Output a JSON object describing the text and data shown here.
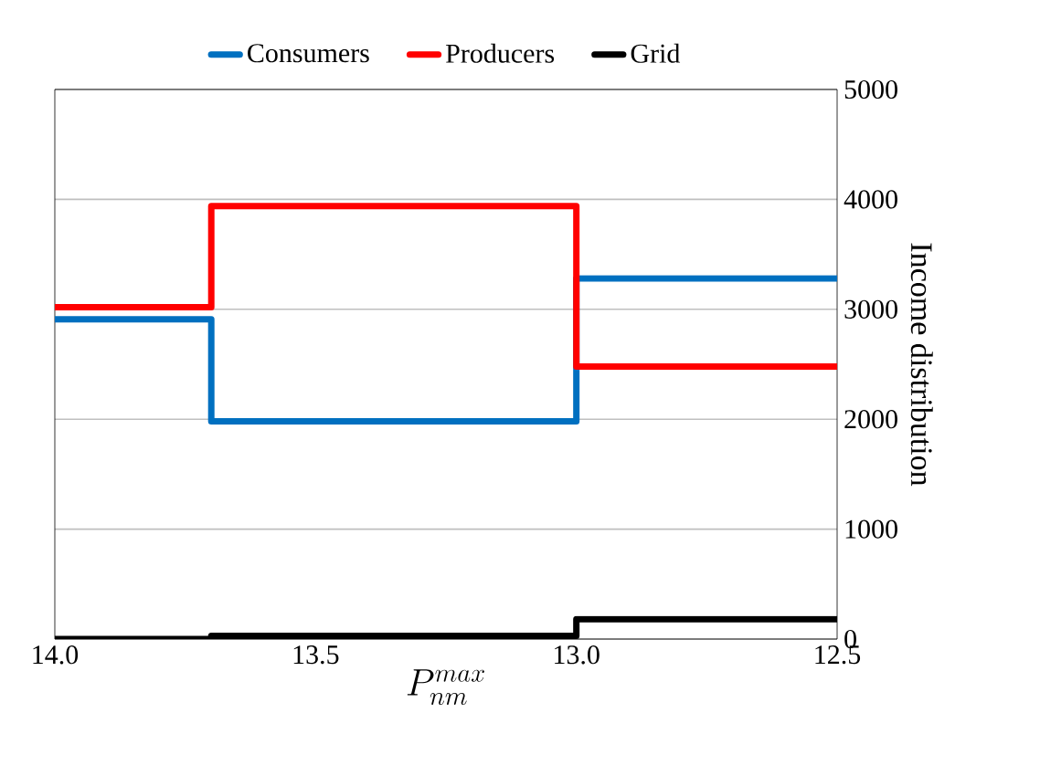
{
  "chart_data": {
    "type": "step",
    "xlabel": "P_{nm}^{max}",
    "ylabel": "Income distribution",
    "x": [
      14.0,
      13.7,
      13.0,
      12.5
    ],
    "series": [
      {
        "name": "Consumers",
        "color": "#0070c0",
        "values": [
          2910,
          1980,
          3280,
          3280
        ]
      },
      {
        "name": "Producers",
        "color": "#ff0000",
        "values": [
          3020,
          3940,
          2480,
          2480
        ]
      },
      {
        "name": "Grid",
        "color": "#000000",
        "values": [
          0,
          30,
          180,
          180
        ]
      }
    ],
    "xlim": [
      14.0,
      12.5
    ],
    "xticks": [
      {
        "value": 14.0,
        "label": "14.0"
      },
      {
        "value": 13.5,
        "label": "13.5"
      },
      {
        "value": 13.0,
        "label": "13.0"
      },
      {
        "value": 12.5,
        "label": "12.5"
      }
    ],
    "ylim": [
      0,
      5000
    ],
    "yticks": [
      0,
      1000,
      2000,
      3000,
      4000,
      5000
    ],
    "grid": "y",
    "legend": "top"
  }
}
